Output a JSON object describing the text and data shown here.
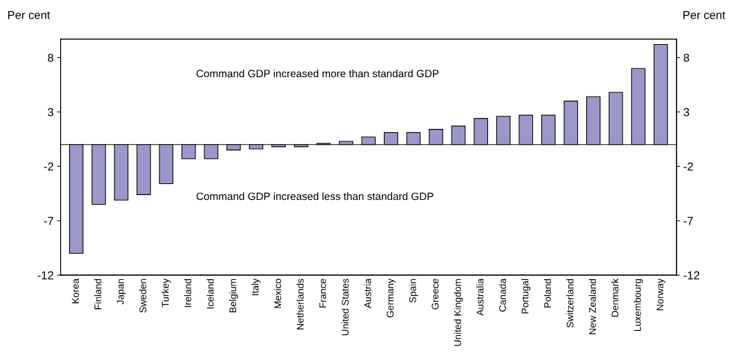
{
  "chart_data": {
    "type": "bar",
    "ylabel": "Per cent",
    "y2label": "Per cent",
    "categories": [
      "Korea",
      "Finland",
      "Japan",
      "Sweden",
      "Turkey",
      "Ireland",
      "Iceland",
      "Belgium",
      "Italy",
      "Mexico",
      "Netherlands",
      "France",
      "United States",
      "Austria",
      "Germany",
      "Spain",
      "Greece",
      "United Kingdom",
      "Australia",
      "Canada",
      "Portugal",
      "Poland",
      "Switzerland",
      "New Zealand",
      "Denmark",
      "Luxembourg",
      "Norway"
    ],
    "values": [
      -10.0,
      -5.5,
      -5.1,
      -4.6,
      -3.6,
      -1.3,
      -1.3,
      -0.5,
      -0.4,
      -0.2,
      -0.2,
      0.1,
      0.3,
      0.7,
      1.1,
      1.1,
      1.4,
      1.7,
      2.4,
      2.6,
      2.7,
      2.7,
      4.0,
      4.4,
      4.8,
      7.0,
      9.2
    ],
    "color": "#9b97c9",
    "ylim": [
      -12,
      9.7
    ],
    "yticks": [
      -12,
      -7,
      -2,
      3,
      8
    ],
    "y2lim": [
      -12,
      9.7
    ],
    "y2ticks": [
      -12,
      -7,
      -2,
      3,
      8
    ],
    "annotations": [
      "Command GDP increased more than standard GDP",
      "Command GDP increased less than standard GDP"
    ],
    "grid": false,
    "legend": false
  }
}
